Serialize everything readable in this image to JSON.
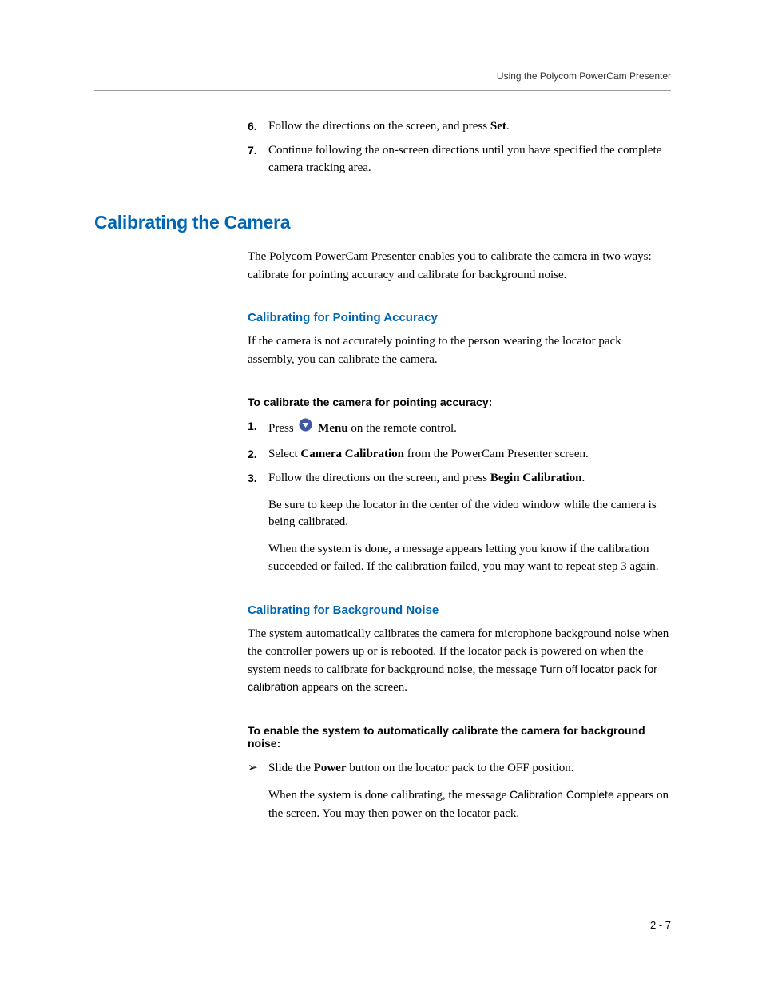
{
  "colors": {
    "heading_blue": "#0066b3",
    "icon_fill": "#4057a3",
    "icon_arrow": "#ffffff",
    "rule_gray": "#9a9a9a",
    "body_text": "#000000",
    "background": "#ffffff"
  },
  "typography": {
    "body_family": "Georgia serif",
    "heading_family": "Arial sans-serif",
    "body_size_pt": 11,
    "h1_size_pt": 17,
    "h2_size_pt": 11,
    "h3_size_pt": 11
  },
  "running_head": "Using the Polycom PowerCam Presenter",
  "page_number": "2 - 7",
  "top_list": {
    "start": 6,
    "items": [
      {
        "num": "6.",
        "pre": "Follow the directions on the screen, and press ",
        "bold": "Set",
        "post": "."
      },
      {
        "num": "7.",
        "pre": "Continue following the on-screen directions until you have specified the complete camera tracking area.",
        "bold": "",
        "post": ""
      }
    ]
  },
  "h1": "Calibrating the Camera",
  "intro": "The Polycom PowerCam Presenter enables you to calibrate the camera in two ways: calibrate for pointing accuracy and calibrate for background noise.",
  "sec1": {
    "h2": "Calibrating for Pointing Accuracy",
    "p": "If the camera is not accurately pointing to the person wearing the locator pack assembly, you can calibrate the camera.",
    "h3": "To calibrate the camera for pointing accuracy:",
    "steps": [
      {
        "num": "1.",
        "line": {
          "pre": "Press  ",
          "icon": true,
          "mid": "  ",
          "bold": "Menu",
          "post": " on the remote control."
        }
      },
      {
        "num": "2.",
        "line": {
          "pre": "Select ",
          "icon": false,
          "mid": "",
          "bold": "Camera Calibration",
          "post": " from the PowerCam Presenter screen."
        }
      },
      {
        "num": "3.",
        "line": {
          "pre": "Follow the directions on the screen, and press ",
          "icon": false,
          "mid": "",
          "bold": "Begin Calibration",
          "post": "."
        },
        "more": [
          "Be sure to keep the locator in the center of the video window while the camera is being calibrated.",
          "When the system is done, a message appears letting you know if the calibration succeeded or failed. If the calibration failed, you may want to repeat step 3 again."
        ]
      }
    ]
  },
  "sec2": {
    "h2": "Calibrating for Background Noise",
    "p_pre": "The system automatically calibrates the camera for microphone background noise when the controller powers up or is rebooted. If the locator pack is powered on when the system needs to calibrate for background noise, the message ",
    "p_sans": "Turn off locator pack for calibration",
    "p_post": " appears on the screen.",
    "h3": "To enable the system to automatically calibrate the camera for background noise:",
    "bullet": {
      "marker": "➢",
      "line": {
        "pre": "Slide the ",
        "bold": "Power",
        "post": " button on the locator pack to the OFF position."
      },
      "more_pre": "When the system is done calibrating, the message ",
      "more_sans": "Calibration Complete",
      "more_post": " appears on the screen. You may then power on the locator pack."
    }
  }
}
